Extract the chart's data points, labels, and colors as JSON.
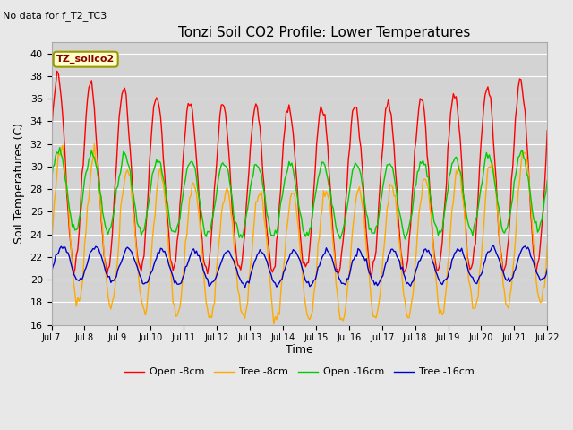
{
  "title": "Tonzi Soil CO2 Profile: Lower Temperatures",
  "no_data_text": "No data for f_T2_TC3",
  "legend_label_text": "TZ_soilco2",
  "ylabel": "Soil Temperatures (C)",
  "xlabel": "Time",
  "ylim": [
    16,
    41
  ],
  "yticks": [
    16,
    18,
    20,
    22,
    24,
    26,
    28,
    30,
    32,
    34,
    36,
    38,
    40
  ],
  "xtick_labels": [
    "Jul 7",
    "Jul 8",
    "Jul 9",
    "Jul 10",
    "Jul 11",
    "Jul 12",
    "Jul 13",
    "Jul 14",
    "Jul 15",
    "Jul 16",
    "Jul 17",
    "Jul 18",
    "Jul 19",
    "Jul 20",
    "Jul 21",
    "Jul 22"
  ],
  "n_days": 15,
  "colors": {
    "open_8cm": "#ff0000",
    "tree_8cm": "#ffaa00",
    "open_16cm": "#00cc00",
    "tree_16cm": "#0000cc"
  },
  "legend_entries": [
    "Open -8cm",
    "Tree -8cm",
    "Open -16cm",
    "Tree -16cm"
  ],
  "fig_facecolor": "#e8e8e8",
  "ax_facecolor": "#d3d3d3",
  "grid_color": "#ffffff",
  "figsize": [
    6.4,
    4.8
  ],
  "dpi": 100
}
